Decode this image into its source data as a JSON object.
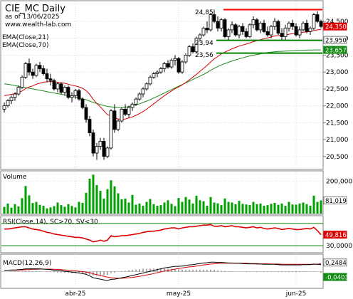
{
  "title": "CIE_MC Daily",
  "subtitle": "as of 13/06/2025",
  "site": "www.wealth-lab.com",
  "colors": {
    "bull": "#ffffff",
    "bear": "#000000",
    "ema21": "#d40000",
    "ema70": "#1e8a1e",
    "resistance": "#ff0000",
    "support": "#008000",
    "volume": "#00a000",
    "rsi": "#e00000",
    "macd": "#000000",
    "signal": "#d40000",
    "tag_red": "#dd0000",
    "tag_green": "#108a10"
  },
  "chart_data": {
    "type": "candlestick",
    "price_panel": {
      "legend": [
        "EMA(Close,21)",
        "EMA(Close,70)"
      ],
      "y_ticks": [
        20500,
        21000,
        21500,
        22000,
        22500,
        23000,
        23500,
        24000,
        24500
      ],
      "y_tick_labels": [
        "20,500",
        "21,000",
        "21,500",
        "22,000",
        "22,500",
        "23,000",
        "23,500",
        "24,000",
        "24,500"
      ],
      "ylim": [
        20200,
        25050
      ],
      "x_labels": [
        {
          "index": 20,
          "label": "abr-25"
        },
        {
          "index": 49,
          "label": "may-25"
        },
        {
          "index": 82,
          "label": "jun-25"
        }
      ],
      "ohlc": [
        [
          21900,
          22100,
          21800,
          22000
        ],
        [
          22000,
          22200,
          21950,
          22150
        ],
        [
          22150,
          22300,
          22050,
          22250
        ],
        [
          22250,
          22400,
          22150,
          22350
        ],
        [
          22350,
          22600,
          22300,
          22550
        ],
        [
          22550,
          22900,
          22500,
          22850
        ],
        [
          22850,
          23300,
          22800,
          23250
        ],
        [
          23250,
          23400,
          22900,
          23000
        ],
        [
          23000,
          23100,
          22800,
          22900
        ],
        [
          22900,
          23250,
          22850,
          23200
        ],
        [
          23200,
          23300,
          23000,
          23100
        ],
        [
          23100,
          23200,
          22900,
          22950
        ],
        [
          22950,
          23100,
          22700,
          22800
        ],
        [
          22800,
          22950,
          22600,
          22750
        ],
        [
          22750,
          22800,
          22450,
          22500
        ],
        [
          22500,
          22700,
          22400,
          22650
        ],
        [
          22650,
          22700,
          22350,
          22400
        ],
        [
          22400,
          22600,
          22300,
          22550
        ],
        [
          22550,
          22600,
          22200,
          22250
        ],
        [
          22250,
          22400,
          22100,
          22300
        ],
        [
          22300,
          22500,
          22200,
          22450
        ],
        [
          22450,
          22500,
          22150,
          22200
        ],
        [
          22200,
          22250,
          21900,
          21950
        ],
        [
          21950,
          22050,
          21500,
          21600
        ],
        [
          21600,
          21700,
          21100,
          21200
        ],
        [
          21200,
          21300,
          20500,
          20600
        ],
        [
          20600,
          20900,
          20400,
          20800
        ],
        [
          20800,
          21050,
          20700,
          20950
        ],
        [
          20950,
          21050,
          20400,
          20500
        ],
        [
          20500,
          20800,
          20450,
          20750
        ],
        [
          20750,
          21900,
          20700,
          21850
        ],
        [
          21850,
          22050,
          21200,
          21300
        ],
        [
          21300,
          21600,
          21250,
          21550
        ],
        [
          21550,
          21950,
          21500,
          21900
        ],
        [
          21900,
          22050,
          21700,
          21750
        ],
        [
          21750,
          22000,
          21650,
          21950
        ],
        [
          21950,
          22100,
          21850,
          22050
        ],
        [
          22050,
          22250,
          22000,
          22200
        ],
        [
          22200,
          22400,
          22150,
          22350
        ],
        [
          22350,
          22550,
          22250,
          22500
        ],
        [
          22500,
          22700,
          22450,
          22650
        ],
        [
          22650,
          22900,
          22600,
          22850
        ],
        [
          22850,
          23000,
          22800,
          22950
        ],
        [
          22950,
          23050,
          22850,
          23000
        ],
        [
          23000,
          23150,
          22950,
          23100
        ],
        [
          23100,
          23300,
          23000,
          23250
        ],
        [
          23250,
          23350,
          23100,
          23150
        ],
        [
          23150,
          23400,
          23100,
          23350
        ],
        [
          23350,
          23500,
          23200,
          23400
        ],
        [
          23400,
          23450,
          22950,
          23000
        ],
        [
          23000,
          23350,
          22950,
          23300
        ],
        [
          23300,
          23550,
          23250,
          23500
        ],
        [
          23500,
          23800,
          23450,
          23750
        ],
        [
          23750,
          23850,
          23550,
          23600
        ],
        [
          23600,
          24050,
          23550,
          24000
        ],
        [
          24000,
          24150,
          23900,
          24100
        ],
        [
          24100,
          24350,
          24050,
          24300
        ],
        [
          24300,
          24500,
          24150,
          24250
        ],
        [
          24250,
          24750,
          24200,
          24700
        ],
        [
          24700,
          24850,
          24450,
          24500
        ],
        [
          24500,
          24650,
          24200,
          24300
        ],
        [
          24300,
          24600,
          24200,
          24550
        ],
        [
          24550,
          24600,
          24000,
          24050
        ],
        [
          24050,
          24300,
          23950,
          24250
        ],
        [
          24250,
          24500,
          24150,
          24400
        ],
        [
          24400,
          24450,
          24050,
          24100
        ],
        [
          24100,
          24400,
          24000,
          24350
        ],
        [
          24350,
          24450,
          24100,
          24200
        ],
        [
          24200,
          24300,
          24000,
          24050
        ],
        [
          24050,
          24450,
          24000,
          24400
        ],
        [
          24400,
          24650,
          24300,
          24550
        ],
        [
          24550,
          24600,
          24200,
          24250
        ],
        [
          24250,
          24500,
          24150,
          24450
        ],
        [
          24450,
          24550,
          24150,
          24200
        ],
        [
          24200,
          24350,
          24050,
          24100
        ],
        [
          24100,
          24400,
          24000,
          24350
        ],
        [
          24350,
          24600,
          24250,
          24500
        ],
        [
          24500,
          24550,
          24100,
          24150
        ],
        [
          24150,
          24300,
          23950,
          24050
        ],
        [
          24050,
          24400,
          23950,
          24300
        ],
        [
          24300,
          24500,
          24200,
          24450
        ],
        [
          24450,
          24550,
          24250,
          24350
        ],
        [
          24350,
          24450,
          24050,
          24100
        ],
        [
          24100,
          24350,
          24000,
          24250
        ],
        [
          24250,
          24500,
          24200,
          24450
        ],
        [
          24450,
          24550,
          24150,
          24200
        ],
        [
          24200,
          24350,
          24100,
          24300
        ],
        [
          24300,
          24750,
          24250,
          24700
        ],
        [
          24700,
          24800,
          24450,
          24500
        ],
        [
          24500,
          24550,
          24300,
          24350
        ]
      ],
      "ema21": [
        22300,
        22320,
        22340,
        22360,
        22390,
        22440,
        22510,
        22560,
        22590,
        22640,
        22670,
        22700,
        22710,
        22720,
        22710,
        22700,
        22680,
        22670,
        22640,
        22610,
        22590,
        22560,
        22520,
        22450,
        22340,
        22190,
        22070,
        21970,
        21850,
        21740,
        21700,
        21650,
        21610,
        21600,
        21610,
        21640,
        21670,
        21720,
        21770,
        21830,
        21900,
        21980,
        22060,
        22140,
        22220,
        22300,
        22370,
        22440,
        22510,
        22560,
        22620,
        22690,
        22770,
        22850,
        22930,
        23020,
        23110,
        23200,
        23300,
        23390,
        23460,
        23540,
        23590,
        23640,
        23690,
        23730,
        23770,
        23800,
        23830,
        23860,
        23900,
        23930,
        23960,
        23990,
        24010,
        24040,
        24070,
        24080,
        24090,
        24100,
        24120,
        24140,
        24150,
        24160,
        24180,
        24190,
        24200,
        24230,
        24250,
        24260
      ],
      "ema70": [
        22650,
        22640,
        22620,
        22600,
        22580,
        22560,
        22540,
        22520,
        22500,
        22480,
        22460,
        22440,
        22420,
        22400,
        22380,
        22360,
        22340,
        22320,
        22300,
        22280,
        22260,
        22240,
        22210,
        22180,
        22140,
        22100,
        22070,
        22040,
        22010,
        21980,
        21970,
        21960,
        21950,
        21950,
        21960,
        21980,
        22000,
        22030,
        22060,
        22100,
        22140,
        22180,
        22230,
        22280,
        22330,
        22380,
        22430,
        22480,
        22530,
        22580,
        22630,
        22680,
        22730,
        22780,
        22830,
        22880,
        22930,
        22990,
        23050,
        23110,
        23160,
        23210,
        23250,
        23290,
        23330,
        23360,
        23390,
        23420,
        23450,
        23480,
        23500,
        23520,
        23540,
        23560,
        23580,
        23590,
        23600,
        23610,
        23615,
        23620,
        23625,
        23630,
        23635,
        23640,
        23645,
        23650,
        23652,
        23655,
        23656,
        23657
      ],
      "resistance": {
        "value": 24850,
        "label": "24,85",
        "from_index": 62,
        "to_index": 89
      },
      "support_lines": [
        {
          "value": 23940,
          "label": "23,94",
          "from_index": 60,
          "to_index": 89
        },
        {
          "value": 23560,
          "label": "23,56",
          "from_index": 60,
          "to_index": 89
        }
      ],
      "last_tags": [
        {
          "value": 24350,
          "label": "24,350",
          "kind": "red"
        },
        {
          "value": 23950,
          "label": "23,950",
          "kind": "white"
        },
        {
          "value": 23657,
          "label": "23,657",
          "kind": "green"
        }
      ]
    },
    "volume_panel": {
      "title": "Volume",
      "tick_value": 200000,
      "tick_label": "200,000",
      "ylim": [
        0,
        250000
      ],
      "last_label": "81,019",
      "values": [
        41000,
        62000,
        36000,
        58000,
        44000,
        95000,
        170000,
        112000,
        65000,
        72000,
        54000,
        48000,
        32000,
        38000,
        46000,
        68000,
        52000,
        42000,
        58000,
        47000,
        38000,
        72000,
        66000,
        128000,
        215000,
        240000,
        175000,
        140000,
        92000,
        150000,
        205000,
        168000,
        125000,
        88000,
        92000,
        68000,
        115000,
        55000,
        62000,
        48000,
        72000,
        90000,
        58000,
        48000,
        52000,
        68000,
        82000,
        60000,
        46000,
        96000,
        72000,
        102000,
        86000,
        62000,
        110000,
        82000,
        76000,
        48000,
        102000,
        68000,
        63000,
        52000,
        93000,
        72000,
        68000,
        58000,
        78000,
        60000,
        56000,
        53000,
        72000,
        58000,
        62000,
        48000,
        52000,
        60000,
        66000,
        54000,
        62000,
        48000,
        72000,
        56000,
        55000,
        62000,
        68000,
        58000,
        48000,
        110000,
        72000,
        81019
      ]
    },
    "rsi_panel": {
      "title": "RSI(Close,14), SC>70, SV<30",
      "levels": [
        70,
        30
      ],
      "level_label": "30,0000",
      "ylim": [
        20,
        80
      ],
      "last_label": "49,8168",
      "values": [
        60,
        60,
        61,
        62,
        63,
        64,
        64,
        62,
        60,
        59,
        58,
        56,
        54,
        53,
        51,
        50,
        49,
        48,
        47,
        46,
        45,
        45,
        44,
        42,
        40,
        37,
        38,
        40,
        38,
        40,
        48,
        46,
        47,
        48,
        48,
        49,
        50,
        51,
        52,
        54,
        55,
        56,
        56,
        57,
        58,
        60,
        61,
        62,
        62,
        60,
        62,
        63,
        64,
        64,
        65,
        66,
        67,
        67,
        68,
        65,
        65,
        66,
        64,
        65,
        66,
        64,
        64,
        63,
        62,
        63,
        64,
        62,
        63,
        61,
        60,
        61,
        62,
        61,
        59,
        60,
        61,
        60,
        59,
        59,
        60,
        61,
        60,
        63,
        57,
        49.8
      ]
    },
    "macd_panel": {
      "title": "MACD(12,26,9)",
      "ylim": [
        -0.55,
        0.55
      ],
      "last_macd_label": "0,2484",
      "last_hist_label": "-0,0403",
      "macd": [
        0.05,
        0.05,
        0.06,
        0.06,
        0.07,
        0.08,
        0.1,
        0.1,
        0.1,
        0.1,
        0.1,
        0.09,
        0.08,
        0.07,
        0.05,
        0.04,
        0.03,
        0.01,
        0.0,
        -0.02,
        -0.03,
        -0.05,
        -0.07,
        -0.1,
        -0.15,
        -0.22,
        -0.25,
        -0.27,
        -0.3,
        -0.32,
        -0.28,
        -0.27,
        -0.25,
        -0.22,
        -0.2,
        -0.17,
        -0.14,
        -0.11,
        -0.08,
        -0.05,
        -0.02,
        0.01,
        0.04,
        0.07,
        0.1,
        0.13,
        0.15,
        0.17,
        0.19,
        0.19,
        0.2,
        0.22,
        0.24,
        0.25,
        0.27,
        0.29,
        0.31,
        0.32,
        0.34,
        0.34,
        0.33,
        0.33,
        0.32,
        0.31,
        0.31,
        0.3,
        0.3,
        0.29,
        0.28,
        0.28,
        0.28,
        0.27,
        0.27,
        0.26,
        0.26,
        0.26,
        0.26,
        0.25,
        0.24,
        0.24,
        0.24,
        0.24,
        0.24,
        0.24,
        0.25,
        0.25,
        0.25,
        0.27,
        0.26,
        0.25
      ],
      "signal": [
        0.05,
        0.05,
        0.05,
        0.05,
        0.06,
        0.06,
        0.07,
        0.07,
        0.08,
        0.08,
        0.09,
        0.09,
        0.09,
        0.09,
        0.08,
        0.08,
        0.07,
        0.06,
        0.05,
        0.04,
        0.03,
        0.01,
        0.0,
        -0.02,
        -0.04,
        -0.08,
        -0.11,
        -0.14,
        -0.17,
        -0.2,
        -0.22,
        -0.23,
        -0.24,
        -0.24,
        -0.23,
        -0.22,
        -0.21,
        -0.19,
        -0.17,
        -0.15,
        -0.12,
        -0.1,
        -0.07,
        -0.04,
        -0.01,
        0.02,
        0.04,
        0.07,
        0.09,
        0.11,
        0.13,
        0.15,
        0.17,
        0.18,
        0.2,
        0.22,
        0.24,
        0.25,
        0.27,
        0.28,
        0.29,
        0.3,
        0.3,
        0.3,
        0.3,
        0.3,
        0.3,
        0.3,
        0.3,
        0.29,
        0.29,
        0.29,
        0.28,
        0.28,
        0.28,
        0.27,
        0.27,
        0.27,
        0.26,
        0.26,
        0.26,
        0.26,
        0.26,
        0.26,
        0.26,
        0.26,
        0.26,
        0.26,
        0.26,
        0.29
      ]
    }
  }
}
